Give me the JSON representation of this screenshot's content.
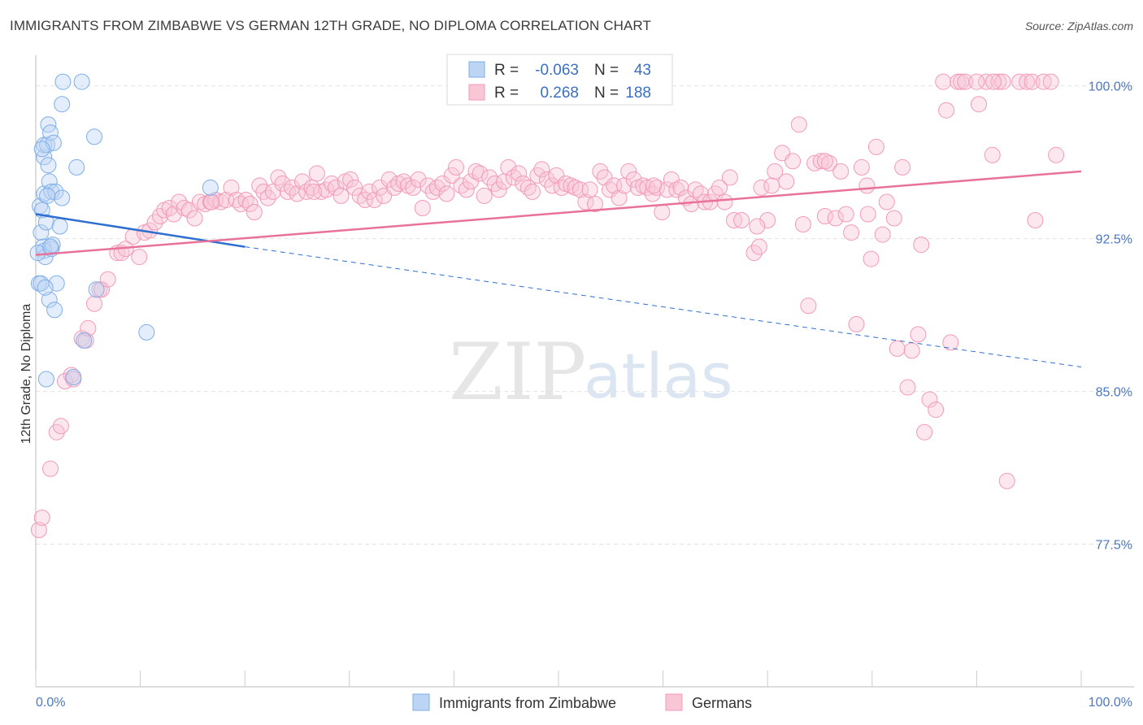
{
  "title": "IMMIGRANTS FROM ZIMBABWE VS GERMAN 12TH GRADE, NO DIPLOMA CORRELATION CHART",
  "source": "Source: ZipAtlas.com",
  "watermark": {
    "zip": "ZIP",
    "atlas": "atlas"
  },
  "colors": {
    "blue": "#7eaee8",
    "blue_line": "#2e6fd0",
    "pink": "#f29ab8",
    "pink_line": "#e8729a",
    "axis_text": "#4a78c2"
  },
  "legend_top": [
    {
      "r_label": "R =",
      "r_value": "-0.063",
      "n_label": "N =",
      "n_value": "43"
    },
    {
      "r_label": "R =",
      "r_value": "0.268",
      "n_label": "N =",
      "n_value": "188"
    }
  ],
  "legend_bottom": [
    "Immigrants from Zimbabwe",
    "Germans"
  ],
  "chart_data": {
    "type": "scatter",
    "title": "IMMIGRANTS FROM ZIMBABWE VS GERMAN 12TH GRADE, NO DIPLOMA CORRELATION CHART",
    "ylabel": "12th Grade, No Diploma",
    "xlabel": "",
    "x_ticks": [
      "0.0%",
      "100.0%"
    ],
    "y_ticks": [
      "100.0%",
      "92.5%",
      "85.0%",
      "77.5%"
    ],
    "xlim": [
      0,
      100
    ],
    "ylim": [
      70.5,
      101.5
    ],
    "grid": true,
    "series": [
      {
        "name": "Immigrants from Zimbabwe",
        "R": -0.063,
        "N": 43,
        "trend": {
          "x": [
            0,
            20
          ],
          "y": [
            93.7,
            92.1
          ],
          "dashed_extension_to": [
            100,
            86.2
          ]
        },
        "points": [
          [
            0.3,
            90.3
          ],
          [
            0.4,
            94.1
          ],
          [
            0.5,
            92.8
          ],
          [
            0.6,
            93.9
          ],
          [
            0.7,
            92.1
          ],
          [
            0.8,
            91.9
          ],
          [
            0.8,
            94.7
          ],
          [
            0.8,
            96.5
          ],
          [
            0.8,
            97.1
          ],
          [
            0.9,
            91.6
          ],
          [
            1.0,
            85.6
          ],
          [
            1.0,
            93.3
          ],
          [
            1.1,
            97.1
          ],
          [
            1.2,
            96.1
          ],
          [
            1.2,
            98.1
          ],
          [
            1.3,
            95.3
          ],
          [
            1.3,
            89.5
          ],
          [
            1.4,
            97.7
          ],
          [
            1.5,
            94.8
          ],
          [
            1.5,
            92.0
          ],
          [
            1.6,
            92.2
          ],
          [
            1.7,
            97.2
          ],
          [
            1.8,
            89.0
          ],
          [
            1.9,
            94.8
          ],
          [
            2.0,
            90.3
          ],
          [
            2.3,
            93.1
          ],
          [
            2.5,
            94.5
          ],
          [
            2.5,
            99.1
          ],
          [
            2.6,
            100.2
          ],
          [
            3.6,
            85.7
          ],
          [
            3.9,
            96.0
          ],
          [
            4.4,
            100.2
          ],
          [
            4.6,
            87.5
          ],
          [
            5.6,
            97.5
          ],
          [
            5.8,
            90.0
          ],
          [
            10.6,
            87.9
          ],
          [
            16.7,
            95.0
          ],
          [
            0.2,
            91.8
          ],
          [
            0.6,
            96.9
          ],
          [
            1.1,
            94.6
          ],
          [
            1.4,
            92.1
          ],
          [
            0.5,
            90.3
          ],
          [
            0.9,
            90.1
          ]
        ]
      },
      {
        "name": "Germans",
        "R": 0.268,
        "N": 188,
        "trend": {
          "x": [
            0,
            100
          ],
          "y": [
            91.7,
            95.8
          ]
        },
        "points": [
          [
            0.3,
            78.2
          ],
          [
            0.6,
            78.8
          ],
          [
            1.4,
            81.2
          ],
          [
            2.0,
            83.0
          ],
          [
            2.4,
            83.3
          ],
          [
            2.8,
            85.5
          ],
          [
            3.4,
            85.8
          ],
          [
            3.6,
            85.6
          ],
          [
            4.4,
            87.6
          ],
          [
            4.8,
            87.5
          ],
          [
            5.0,
            88.1
          ],
          [
            5.6,
            89.3
          ],
          [
            6.1,
            90.0
          ],
          [
            6.3,
            90.0
          ],
          [
            6.9,
            90.5
          ],
          [
            7.8,
            91.8
          ],
          [
            8.2,
            91.8
          ],
          [
            8.6,
            92.0
          ],
          [
            9.3,
            92.6
          ],
          [
            9.9,
            91.6
          ],
          [
            10.4,
            92.8
          ],
          [
            10.9,
            92.9
          ],
          [
            11.4,
            93.3
          ],
          [
            11.9,
            93.6
          ],
          [
            12.3,
            93.9
          ],
          [
            12.8,
            94.0
          ],
          [
            13.2,
            93.7
          ],
          [
            13.7,
            94.3
          ],
          [
            14.2,
            94.0
          ],
          [
            14.7,
            93.9
          ],
          [
            15.2,
            93.5
          ],
          [
            15.7,
            94.3
          ],
          [
            16.2,
            94.2
          ],
          [
            16.7,
            94.3
          ],
          [
            17.2,
            94.4
          ],
          [
            17.7,
            94.3
          ],
          [
            18.2,
            94.4
          ],
          [
            18.7,
            95.0
          ],
          [
            19.2,
            94.4
          ],
          [
            19.6,
            94.2
          ],
          [
            20.1,
            94.4
          ],
          [
            20.5,
            94.2
          ],
          [
            20.9,
            93.8
          ],
          [
            21.4,
            95.1
          ],
          [
            21.8,
            94.8
          ],
          [
            22.2,
            94.5
          ],
          [
            22.7,
            94.8
          ],
          [
            23.2,
            95.5
          ],
          [
            23.6,
            95.2
          ],
          [
            24.1,
            94.8
          ],
          [
            24.5,
            95.0
          ],
          [
            25.0,
            94.7
          ],
          [
            25.5,
            95.3
          ],
          [
            25.9,
            94.8
          ],
          [
            26.4,
            95.0
          ],
          [
            26.9,
            95.7
          ],
          [
            27.3,
            94.8
          ],
          [
            27.8,
            94.9
          ],
          [
            28.3,
            95.2
          ],
          [
            28.7,
            95.0
          ],
          [
            29.2,
            94.6
          ],
          [
            29.6,
            95.3
          ],
          [
            30.1,
            95.4
          ],
          [
            30.5,
            95.0
          ],
          [
            31.0,
            94.6
          ],
          [
            31.5,
            94.4
          ],
          [
            31.9,
            94.8
          ],
          [
            32.4,
            94.4
          ],
          [
            32.9,
            95.0
          ],
          [
            33.3,
            94.6
          ],
          [
            33.8,
            95.4
          ],
          [
            34.3,
            95.0
          ],
          [
            34.7,
            95.2
          ],
          [
            35.2,
            95.3
          ],
          [
            35.6,
            95.1
          ],
          [
            36.1,
            95.0
          ],
          [
            36.6,
            95.4
          ],
          [
            37.0,
            94.0
          ],
          [
            37.5,
            95.1
          ],
          [
            38.0,
            94.8
          ],
          [
            38.4,
            95.0
          ],
          [
            38.9,
            95.2
          ],
          [
            39.3,
            94.7
          ],
          [
            39.8,
            95.6
          ],
          [
            40.2,
            96.0
          ],
          [
            40.7,
            95.1
          ],
          [
            41.2,
            94.9
          ],
          [
            41.6,
            95.3
          ],
          [
            42.1,
            95.8
          ],
          [
            42.5,
            95.7
          ],
          [
            42.9,
            94.6
          ],
          [
            43.4,
            95.5
          ],
          [
            43.9,
            95.2
          ],
          [
            44.3,
            94.9
          ],
          [
            44.8,
            95.3
          ],
          [
            45.2,
            96.0
          ],
          [
            45.7,
            95.5
          ],
          [
            46.2,
            95.7
          ],
          [
            46.6,
            95.2
          ],
          [
            47.1,
            95.0
          ],
          [
            47.5,
            94.8
          ],
          [
            48.0,
            95.6
          ],
          [
            48.4,
            95.9
          ],
          [
            48.9,
            95.4
          ],
          [
            49.4,
            95.1
          ],
          [
            49.8,
            95.6
          ],
          [
            50.3,
            95.0
          ],
          [
            50.7,
            95.2
          ],
          [
            51.2,
            95.1
          ],
          [
            51.6,
            95.0
          ],
          [
            52.1,
            94.9
          ],
          [
            52.6,
            94.3
          ],
          [
            53.0,
            94.9
          ],
          [
            53.5,
            94.2
          ],
          [
            54.0,
            95.8
          ],
          [
            54.4,
            95.5
          ],
          [
            54.9,
            94.9
          ],
          [
            55.3,
            95.1
          ],
          [
            55.8,
            94.5
          ],
          [
            56.3,
            95.1
          ],
          [
            56.7,
            95.8
          ],
          [
            57.2,
            95.4
          ],
          [
            57.6,
            95.0
          ],
          [
            58.1,
            95.1
          ],
          [
            58.5,
            95.0
          ],
          [
            59.0,
            94.7
          ],
          [
            59.4,
            95.0
          ],
          [
            59.9,
            93.8
          ],
          [
            60.4,
            94.9
          ],
          [
            60.8,
            95.4
          ],
          [
            61.3,
            94.9
          ],
          [
            61.7,
            95.0
          ],
          [
            62.2,
            94.5
          ],
          [
            62.7,
            94.2
          ],
          [
            63.1,
            94.9
          ],
          [
            63.6,
            94.7
          ],
          [
            64.0,
            94.3
          ],
          [
            64.5,
            94.3
          ],
          [
            65.0,
            94.7
          ],
          [
            65.4,
            95.0
          ],
          [
            65.9,
            94.3
          ],
          [
            66.4,
            95.5
          ],
          [
            66.8,
            93.4
          ],
          [
            67.5,
            93.4
          ],
          [
            68.7,
            91.8
          ],
          [
            69.2,
            92.1
          ],
          [
            69.4,
            95.0
          ],
          [
            70.0,
            93.4
          ],
          [
            70.4,
            95.1
          ],
          [
            70.7,
            95.8
          ],
          [
            71.4,
            96.7
          ],
          [
            71.8,
            95.3
          ],
          [
            72.4,
            96.3
          ],
          [
            73.0,
            98.1
          ],
          [
            73.4,
            93.2
          ],
          [
            73.9,
            89.2
          ],
          [
            74.5,
            96.2
          ],
          [
            75.1,
            96.3
          ],
          [
            75.5,
            93.6
          ],
          [
            75.9,
            96.2
          ],
          [
            76.5,
            93.5
          ],
          [
            77.0,
            95.8
          ],
          [
            77.5,
            93.7
          ],
          [
            78.0,
            92.8
          ],
          [
            78.5,
            88.3
          ],
          [
            79.0,
            96.0
          ],
          [
            79.5,
            95.1
          ],
          [
            79.9,
            91.5
          ],
          [
            80.4,
            97.0
          ],
          [
            81.0,
            92.7
          ],
          [
            81.4,
            94.3
          ],
          [
            82.1,
            93.5
          ],
          [
            82.4,
            87.1
          ],
          [
            82.9,
            96.0
          ],
          [
            83.4,
            85.2
          ],
          [
            83.8,
            87.0
          ],
          [
            84.4,
            87.8
          ],
          [
            85.0,
            83.0
          ],
          [
            85.5,
            84.6
          ],
          [
            86.1,
            84.1
          ],
          [
            86.8,
            100.2
          ],
          [
            87.1,
            98.8
          ],
          [
            87.5,
            87.4
          ],
          [
            88.2,
            100.2
          ],
          [
            88.5,
            100.2
          ],
          [
            88.9,
            100.2
          ],
          [
            90.2,
            99.1
          ],
          [
            90.9,
            100.2
          ],
          [
            91.5,
            96.6
          ],
          [
            92.1,
            100.2
          ],
          [
            92.5,
            100.2
          ],
          [
            92.9,
            80.6
          ],
          [
            94.1,
            100.2
          ],
          [
            94.8,
            100.2
          ],
          [
            95.3,
            100.2
          ],
          [
            95.6,
            93.4
          ],
          [
            96.4,
            100.2
          ],
          [
            97.1,
            100.2
          ],
          [
            75.5,
            96.3
          ],
          [
            79.6,
            93.7
          ],
          [
            84.7,
            92.2
          ],
          [
            91.6,
            100.2
          ],
          [
            97.6,
            96.6
          ],
          [
            16.8,
            94.3
          ],
          [
            26.6,
            94.8
          ],
          [
            59.1,
            95.1
          ],
          [
            69.0,
            93.1
          ],
          [
            90.0,
            100.2
          ]
        ]
      }
    ]
  }
}
